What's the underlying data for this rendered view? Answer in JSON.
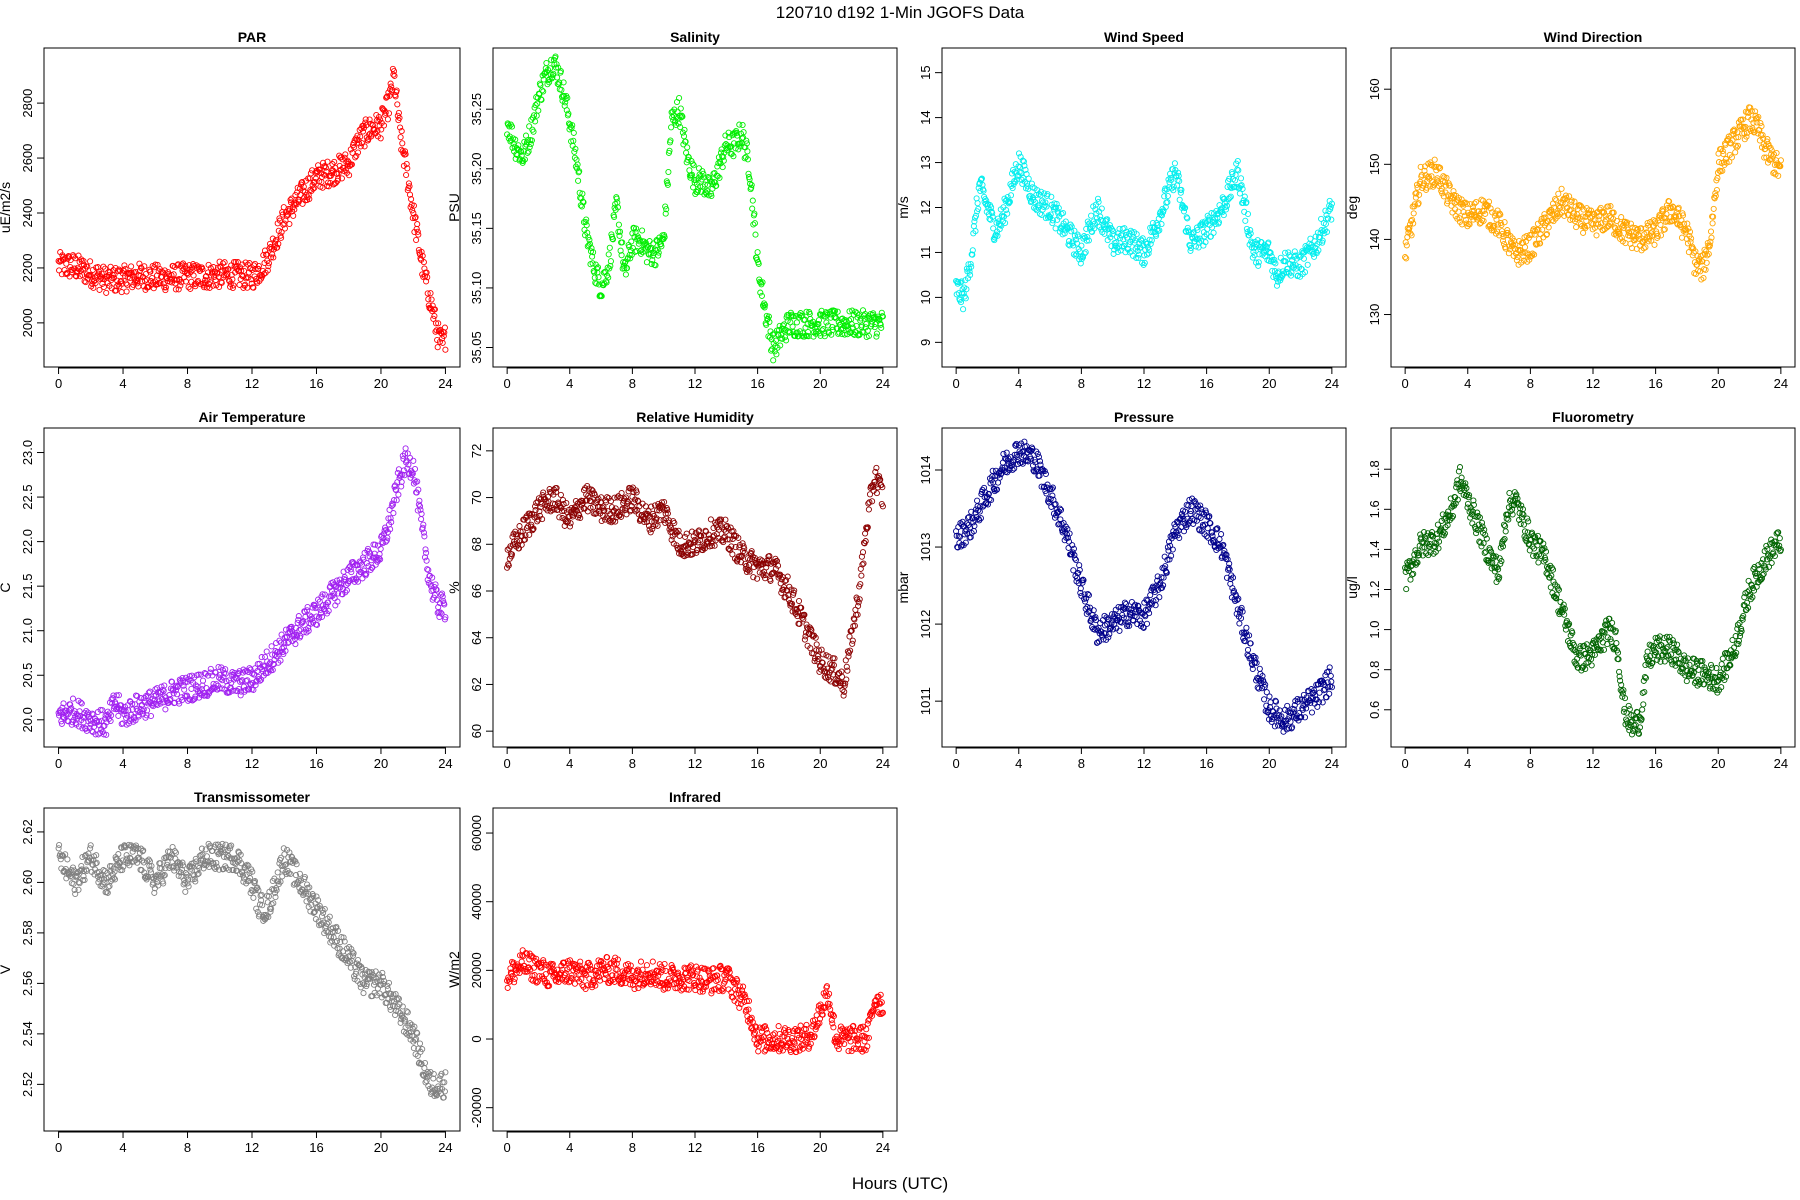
{
  "figure_title": "120710   d192   1-Min  JGOFS Data",
  "x_label": "Hours (UTC)",
  "chart_data": [
    {
      "type": "scatter",
      "title": "PAR",
      "ylabel": "uE/m2/s",
      "color": "#ff0000",
      "xlim": [
        0,
        24
      ],
      "ylim": [
        1880,
        2960
      ],
      "xticks": [
        "0",
        "4",
        "8",
        "12",
        "16",
        "20",
        "24"
      ],
      "yticks": [
        "2000",
        "2200",
        "2400",
        "2600",
        "2800"
      ],
      "series": [
        {
          "x": [
            0,
            1,
            2,
            3,
            4,
            5,
            6,
            7,
            8,
            9,
            10,
            11,
            12,
            12.5,
            13,
            13.5,
            14,
            15,
            16,
            17,
            18,
            18.5,
            19,
            19.5,
            20,
            20.5,
            20.8,
            21.2,
            21.6,
            22,
            22.3,
            22.6,
            22.9,
            23.2,
            23.5,
            23.8,
            24
          ],
          "y": [
            2210,
            2205,
            2180,
            2155,
            2160,
            2170,
            2165,
            2165,
            2170,
            2170,
            2175,
            2175,
            2170,
            2195,
            2240,
            2310,
            2380,
            2460,
            2530,
            2550,
            2580,
            2650,
            2690,
            2710,
            2720,
            2800,
            2900,
            2680,
            2550,
            2400,
            2300,
            2200,
            2120,
            2050,
            1960,
            1920,
            1950
          ]
        }
      ]
    },
    {
      "type": "scatter",
      "title": "Salinity",
      "ylabel": "PSU",
      "color": "#00ee00",
      "xlim": [
        0,
        24
      ],
      "ylim": [
        35.043,
        35.292
      ],
      "xticks": [
        "0",
        "4",
        "8",
        "12",
        "16",
        "20",
        "24"
      ],
      "yticks": [
        "35.05",
        "35.10",
        "35.15",
        "35.20",
        "35.25"
      ],
      "series": [
        {
          "x": [
            0,
            0.5,
            1,
            1.5,
            2,
            2.5,
            3,
            3.5,
            4,
            4.5,
            5,
            5.5,
            6,
            6.5,
            7,
            7.5,
            8,
            8.5,
            9,
            9.5,
            10,
            10.5,
            11,
            11.5,
            12,
            12.5,
            13,
            13.5,
            14,
            14.5,
            15,
            15.5,
            16,
            16.5,
            17,
            17.5,
            18,
            19,
            20,
            21,
            22,
            23,
            24
          ],
          "y": [
            35.24,
            35.22,
            35.21,
            35.23,
            35.26,
            35.28,
            35.29,
            35.27,
            35.24,
            35.2,
            35.15,
            35.12,
            35.1,
            35.12,
            35.17,
            35.11,
            35.14,
            35.14,
            35.13,
            35.13,
            35.14,
            35.24,
            35.25,
            35.21,
            35.19,
            35.19,
            35.18,
            35.2,
            35.22,
            35.22,
            35.23,
            35.2,
            35.12,
            35.08,
            35.05,
            35.06,
            35.07,
            35.07,
            35.07,
            35.07,
            35.07,
            35.07,
            35.07
          ]
        }
      ]
    },
    {
      "type": "scatter",
      "title": "Wind Speed",
      "ylabel": "m/s",
      "color": "#00eeee",
      "xlim": [
        0,
        24
      ],
      "ylim": [
        8.7,
        15.3
      ],
      "xticks": [
        "0",
        "4",
        "8",
        "12",
        "16",
        "20",
        "24"
      ],
      "yticks": [
        "9",
        "10",
        "11",
        "12",
        "13",
        "14",
        "15"
      ],
      "series": [
        {
          "x": [
            0,
            0.5,
            1,
            1.5,
            2,
            2.5,
            3,
            4,
            5,
            6,
            7,
            8,
            9,
            10,
            11,
            12,
            13,
            14,
            15,
            16,
            17,
            18,
            19,
            20,
            20.5,
            21,
            22,
            23,
            24
          ],
          "y": [
            10.2,
            10.0,
            11.0,
            12.5,
            12.0,
            11.5,
            11.8,
            13.0,
            12.2,
            12.0,
            11.5,
            11.0,
            12.0,
            11.2,
            11.3,
            11.0,
            11.8,
            12.8,
            11.2,
            11.5,
            12.0,
            12.8,
            11.0,
            11.0,
            10.5,
            10.8,
            10.7,
            11.2,
            12.0
          ]
        }
      ]
    },
    {
      "type": "scatter",
      "title": "Wind Direction",
      "ylabel": "deg",
      "color": "#ffa500",
      "xlim": [
        0,
        24
      ],
      "ylim": [
        124.5,
        164
      ],
      "xticks": [
        "0",
        "4",
        "8",
        "12",
        "16",
        "20",
        "24"
      ],
      "yticks": [
        "130",
        "140",
        "150",
        "160"
      ],
      "series": [
        {
          "x": [
            0,
            1,
            2,
            3,
            4,
            5,
            6,
            7,
            8,
            9,
            10,
            11,
            12,
            13,
            14,
            15,
            16,
            17,
            18,
            18.5,
            19,
            19.5,
            20,
            21,
            22,
            22.5,
            23,
            24
          ],
          "y": [
            138,
            148,
            149,
            145,
            143,
            144,
            142,
            138,
            139,
            142,
            145,
            143,
            142,
            143,
            141,
            140,
            141,
            144,
            141,
            137,
            136,
            140,
            150,
            153,
            156,
            155,
            152,
            149
          ]
        }
      ]
    },
    {
      "type": "scatter",
      "title": "Air Temperature",
      "ylabel": "C",
      "color": "#a020f0",
      "xlim": [
        0,
        24
      ],
      "ylim": [
        19.82,
        23.15
      ],
      "xticks": [
        "0",
        "4",
        "8",
        "12",
        "16",
        "20",
        "24"
      ],
      "yticks": [
        "20.0",
        "20.5",
        "21.0",
        "21.5",
        "22.0",
        "22.5",
        "23.0"
      ],
      "series": [
        {
          "x": [
            0,
            1,
            2,
            3,
            3.5,
            4,
            5,
            6,
            7,
            8,
            9,
            10,
            11,
            12,
            13,
            14,
            15,
            16,
            17,
            18,
            19,
            20,
            20.5,
            21,
            21.5,
            22,
            22.5,
            23,
            23.5,
            24
          ],
          "y": [
            20.05,
            20.1,
            20.0,
            19.95,
            20.2,
            20.05,
            20.15,
            20.2,
            20.3,
            20.35,
            20.4,
            20.45,
            20.4,
            20.45,
            20.65,
            20.85,
            21.05,
            21.2,
            21.4,
            21.6,
            21.75,
            21.9,
            22.2,
            22.6,
            22.9,
            22.85,
            22.2,
            21.6,
            21.3,
            21.25
          ]
        }
      ]
    },
    {
      "type": "scatter",
      "title": "Relative Humidity",
      "ylabel": "%",
      "color": "#8b0000",
      "xlim": [
        0,
        24
      ],
      "ylim": [
        59.8,
        72.5
      ],
      "xticks": [
        "0",
        "4",
        "8",
        "12",
        "16",
        "20",
        "24"
      ],
      "yticks": [
        "60",
        "62",
        "64",
        "66",
        "68",
        "70",
        "72"
      ],
      "series": [
        {
          "x": [
            0,
            1,
            2,
            3,
            4,
            5,
            6,
            7,
            8,
            9,
            10,
            11,
            12,
            13,
            14,
            15,
            16,
            17,
            18,
            19,
            20,
            21,
            21.5,
            22,
            22.5,
            23,
            23.5,
            24
          ],
          "y": [
            67.5,
            68.5,
            69.5,
            70,
            69,
            70,
            69.5,
            69.5,
            70,
            69,
            69.5,
            68,
            68,
            68.5,
            68.5,
            67.5,
            67,
            67,
            66,
            64.5,
            63,
            62.5,
            62,
            64,
            66,
            69,
            71,
            70
          ]
        }
      ]
    },
    {
      "type": "scatter",
      "title": "Pressure",
      "ylabel": "mbar",
      "color": "#00008b",
      "xlim": [
        0,
        24
      ],
      "ylim": [
        1010.55,
        1014.4
      ],
      "xticks": [
        "0",
        "4",
        "8",
        "12",
        "16",
        "20",
        "24"
      ],
      "yticks": [
        "1011",
        "1012",
        "1013",
        "1014"
      ],
      "series": [
        {
          "x": [
            0,
            1,
            2,
            3,
            4,
            5,
            6,
            7,
            8,
            9,
            10,
            11,
            12,
            13,
            14,
            15,
            16,
            17,
            18,
            19,
            20,
            21,
            22,
            23,
            24
          ],
          "y": [
            1013.1,
            1013.3,
            1013.7,
            1014.05,
            1014.25,
            1014.15,
            1013.7,
            1013.2,
            1012.5,
            1011.9,
            1012.0,
            1012.15,
            1012.1,
            1012.5,
            1013.2,
            1013.5,
            1013.3,
            1013.0,
            1012.2,
            1011.5,
            1010.9,
            1010.75,
            1010.9,
            1011.05,
            1011.3
          ]
        }
      ]
    },
    {
      "type": "scatter",
      "title": "Fluorometry",
      "ylabel": "ug/l",
      "color": "#006400",
      "xlim": [
        0,
        24
      ],
      "ylim": [
        0.47,
        1.95
      ],
      "xticks": [
        "0",
        "4",
        "8",
        "12",
        "16",
        "20",
        "24"
      ],
      "yticks": [
        "0.6",
        "0.8",
        "1.0",
        "1.2",
        "1.4",
        "1.6",
        "1.8"
      ],
      "series": [
        {
          "x": [
            0,
            1,
            2,
            3,
            3.5,
            4,
            5,
            5.5,
            6,
            6.5,
            7,
            8,
            9,
            10,
            11,
            12,
            13,
            13.5,
            14,
            14.5,
            15,
            15.5,
            16,
            17,
            18,
            19,
            20,
            21,
            22,
            23,
            24
          ],
          "y": [
            1.25,
            1.42,
            1.45,
            1.6,
            1.75,
            1.65,
            1.45,
            1.35,
            1.28,
            1.6,
            1.65,
            1.45,
            1.35,
            1.1,
            0.85,
            0.88,
            1.0,
            0.95,
            0.6,
            0.52,
            0.55,
            0.85,
            0.9,
            0.9,
            0.8,
            0.78,
            0.75,
            0.9,
            1.2,
            1.35,
            1.45
          ]
        }
      ]
    },
    {
      "type": "scatter",
      "title": "Transmissometer",
      "ylabel": "V",
      "color": "#808080",
      "xlim": [
        0,
        24
      ],
      "ylim": [
        2.506,
        2.625
      ],
      "xticks": [
        "0",
        "4",
        "8",
        "12",
        "16",
        "20",
        "24"
      ],
      "yticks": [
        "2.52",
        "2.54",
        "2.56",
        "2.58",
        "2.60",
        "2.62"
      ],
      "series": [
        {
          "x": [
            0,
            1,
            2,
            3,
            4,
            5,
            6,
            7,
            8,
            9,
            10,
            11,
            12,
            12.5,
            13,
            14,
            15,
            16,
            17,
            18,
            19,
            20,
            21,
            22,
            23,
            24
          ],
          "y": [
            2.61,
            2.6,
            2.61,
            2.6,
            2.61,
            2.61,
            2.6,
            2.61,
            2.6,
            2.61,
            2.61,
            2.61,
            2.6,
            2.59,
            2.59,
            2.61,
            2.6,
            2.59,
            2.58,
            2.57,
            2.56,
            2.56,
            2.55,
            2.54,
            2.52,
            2.52
          ]
        }
      ]
    },
    {
      "type": "scatter",
      "title": "Infrared",
      "ylabel": "W/m2",
      "color": "#ff0000",
      "xlim": [
        0,
        24
      ],
      "ylim": [
        -23500,
        64000
      ],
      "xticks": [
        "0",
        "4",
        "8",
        "12",
        "16",
        "20",
        "24"
      ],
      "yticks": [
        "-20000",
        "0",
        "20000",
        "40000",
        "60000"
      ],
      "series": [
        {
          "x": [
            0,
            1,
            2,
            3,
            4,
            5,
            6,
            7,
            8,
            9,
            10,
            11,
            12,
            13,
            14,
            15,
            15.5,
            16,
            17,
            18,
            19,
            19.5,
            20,
            20.5,
            21,
            22,
            23,
            23.5,
            24
          ],
          "y": [
            18000,
            22000,
            20000,
            18000,
            20000,
            18000,
            20000,
            20000,
            18000,
            20000,
            18000,
            18000,
            18000,
            17000,
            18000,
            12000,
            8000,
            0,
            0,
            0,
            0,
            2000,
            8000,
            14000,
            0,
            0,
            0,
            12000,
            10000
          ]
        }
      ]
    }
  ]
}
